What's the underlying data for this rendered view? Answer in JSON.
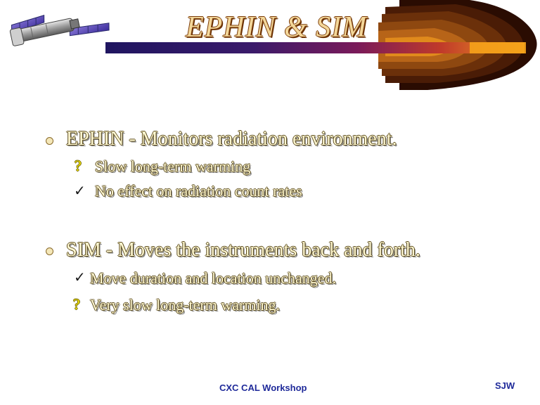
{
  "slide": {
    "title": "EPHIN & SIM",
    "sections": [
      {
        "heading": "EPHIN - Monitors radiation environment.",
        "items": [
          {
            "icon": "question-mark-icon",
            "text": "Slow long-term warming"
          },
          {
            "icon": "check-mark-icon",
            "text": "No effect on radiation count rates"
          }
        ]
      },
      {
        "heading": "SIM - Moves the instruments back and forth.",
        "items": [
          {
            "icon": "check-mark-icon",
            "text": "Move duration and location unchanged."
          },
          {
            "icon": "question-mark-icon",
            "text": "Very slow long-term warming."
          }
        ]
      }
    ],
    "icons": {
      "question": "?",
      "check": "✓"
    },
    "footer": {
      "center": "CXC CAL Workshop",
      "right": "SJW"
    }
  },
  "colors": {
    "title_fill": "#f3d79a",
    "body_text": "#fff8d2",
    "question_mark": "#f2e20a",
    "footer_text": "#1f2a9a",
    "comet_core": "#f5a21a",
    "bar_start": "#2a1a6a"
  }
}
